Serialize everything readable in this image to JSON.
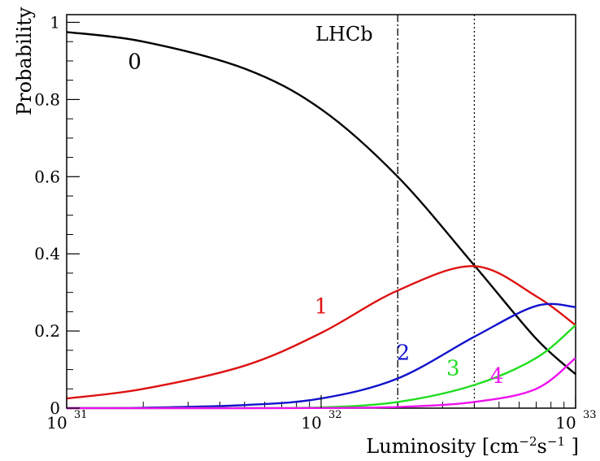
{
  "chart_data": {
    "type": "line",
    "annotation": "LHCb",
    "xlabel": {
      "text": "Luminosity [cm",
      "sup1": "−2",
      "mid": "s",
      "sup2": "−1",
      "end": " ]"
    },
    "ylabel": "Probability",
    "x_scale": "log",
    "xlim": [
      1e+31,
      1e+33
    ],
    "ylim": [
      0,
      1.02
    ],
    "x_ticks": [
      {
        "base": "10",
        "exp": "31",
        "value": 1e+31
      },
      {
        "base": "10",
        "exp": "32",
        "value": 1e+32
      },
      {
        "base": "10",
        "exp": "33",
        "value": 1e+33
      }
    ],
    "y_ticks": [
      {
        "label": "0",
        "value": 0
      },
      {
        "label": "0.2",
        "value": 0.2
      },
      {
        "label": "0.4",
        "value": 0.4
      },
      {
        "label": "0.6",
        "value": 0.6
      },
      {
        "label": "0.8",
        "value": 0.8
      },
      {
        "label": "1",
        "value": 1
      }
    ],
    "vertical_lines": [
      {
        "x": 2e+32,
        "style": "dash-dot"
      },
      {
        "x": 4e+32,
        "style": "dotted"
      }
    ],
    "x": [
      1e+31,
      2e+31,
      5e+31,
      1e+32,
      2e+32,
      4e+32,
      7e+32,
      1e+33
    ],
    "series": [
      {
        "label": "0",
        "color": "#000000",
        "values": [
          0.975,
          0.95,
          0.88,
          0.775,
          0.6,
          0.37,
          0.18,
          0.088
        ],
        "label_at": [
          1.85e+31,
          0.88
        ]
      },
      {
        "label": "1",
        "color": "#dd1111",
        "values": [
          0.025,
          0.05,
          0.11,
          0.195,
          0.305,
          0.368,
          0.29,
          0.215
        ],
        "label_at": [
          1e+32,
          0.245
        ]
      },
      {
        "label": "2",
        "color": "#1111cc",
        "values": [
          0.0003,
          0.0013,
          0.008,
          0.025,
          0.077,
          0.185,
          0.265,
          0.262
        ],
        "label_at": [
          2.1e+32,
          0.125
        ]
      },
      {
        "label": "3",
        "color": "#22dd22",
        "values": [
          0,
          0.0001,
          0.0005,
          0.002,
          0.016,
          0.06,
          0.13,
          0.215
        ],
        "label_at": [
          3.3e+32,
          0.085
        ]
      },
      {
        "label": "4",
        "color": "#ee11ee",
        "values": [
          0,
          0,
          0.0001,
          0.0005,
          0.003,
          0.016,
          0.05,
          0.13
        ],
        "label_at": [
          4.9e+32,
          0.065
        ]
      }
    ]
  }
}
